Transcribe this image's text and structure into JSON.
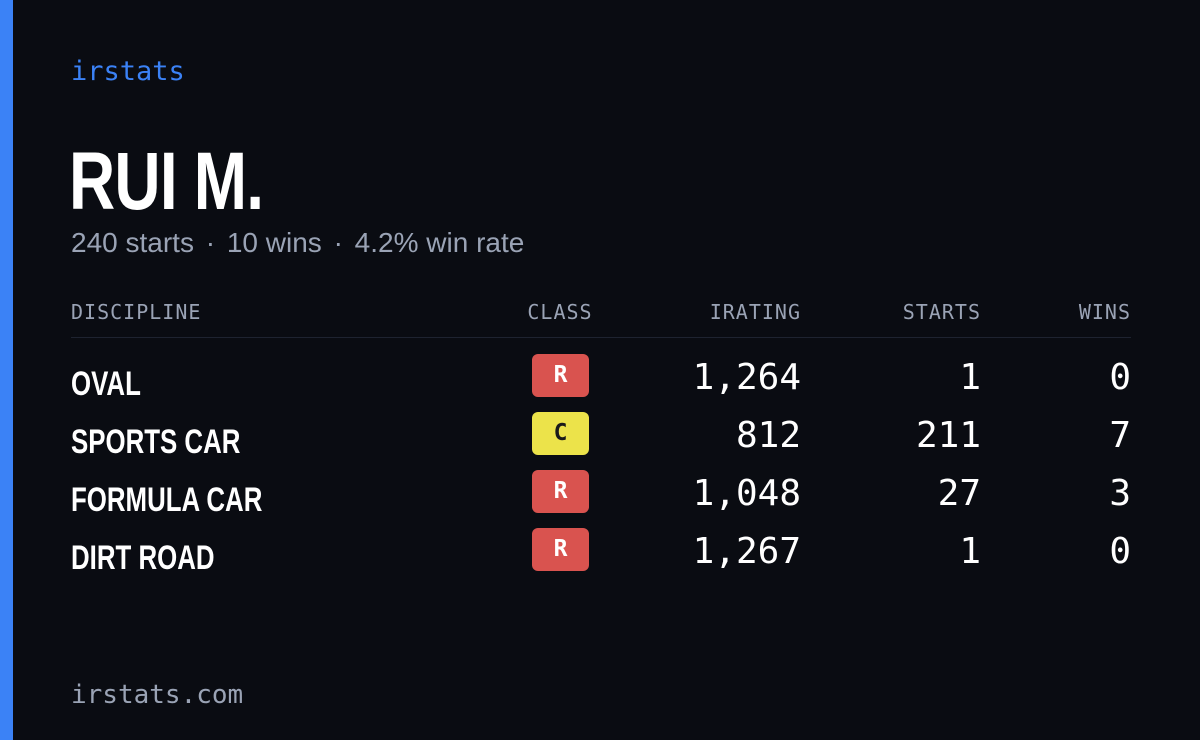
{
  "brand": "irstats",
  "driver": {
    "name": "RUI M.",
    "starts_text": "240 starts",
    "wins_text": "10 wins",
    "winrate_text": "4.2% win rate",
    "separator": "·"
  },
  "table": {
    "headers": {
      "discipline": "DISCIPLINE",
      "class": "CLASS",
      "irating": "IRATING",
      "starts": "STARTS",
      "wins": "WINS"
    },
    "rows": [
      {
        "discipline": "OVAL",
        "class": "R",
        "irating": "1,264",
        "starts": "1",
        "wins": "0"
      },
      {
        "discipline": "SPORTS CAR",
        "class": "C",
        "irating": "812",
        "starts": "211",
        "wins": "7"
      },
      {
        "discipline": "FORMULA CAR",
        "class": "R",
        "irating": "1,048",
        "starts": "27",
        "wins": "3"
      },
      {
        "discipline": "DIRT ROAD",
        "class": "R",
        "irating": "1,267",
        "starts": "1",
        "wins": "0"
      }
    ]
  },
  "footer": "irstats.com",
  "colors": {
    "accent": "#3b82f6",
    "background": "#0a0c12",
    "class_r": "#d9534f",
    "class_c": "#ece34a",
    "muted_text": "#9aa3b5"
  }
}
